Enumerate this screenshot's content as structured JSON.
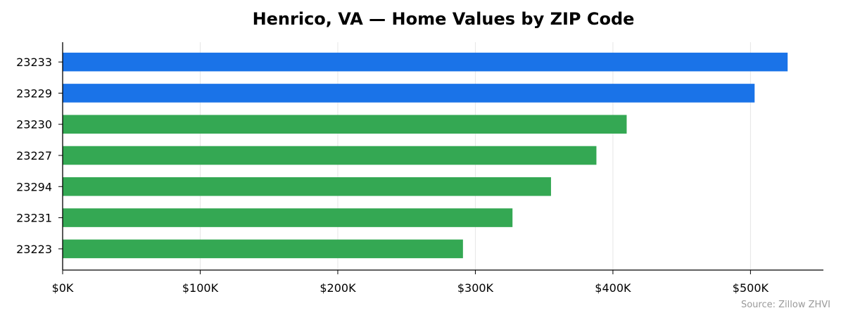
{
  "chart_data": {
    "type": "bar",
    "orientation": "horizontal",
    "title": "Henrico, VA — Home Values by ZIP Code",
    "xlabel": "",
    "ylabel": "",
    "categories": [
      "23233",
      "23229",
      "23230",
      "23227",
      "23294",
      "23231",
      "23223"
    ],
    "values": [
      527000,
      503000,
      410000,
      388000,
      355000,
      327000,
      291000
    ],
    "bar_colors": [
      "#1a73e8",
      "#1a73e8",
      "#34a853",
      "#34a853",
      "#34a853",
      "#34a853",
      "#34a853"
    ],
    "xlim": [
      0,
      553000
    ],
    "xticks": [
      0,
      100000,
      200000,
      300000,
      400000,
      500000
    ],
    "xtick_labels": [
      "$0K",
      "$100K",
      "$200K",
      "$300K",
      "$400K",
      "$500K"
    ],
    "grid": "vertical",
    "source": "Source: Zillow ZHVI"
  }
}
